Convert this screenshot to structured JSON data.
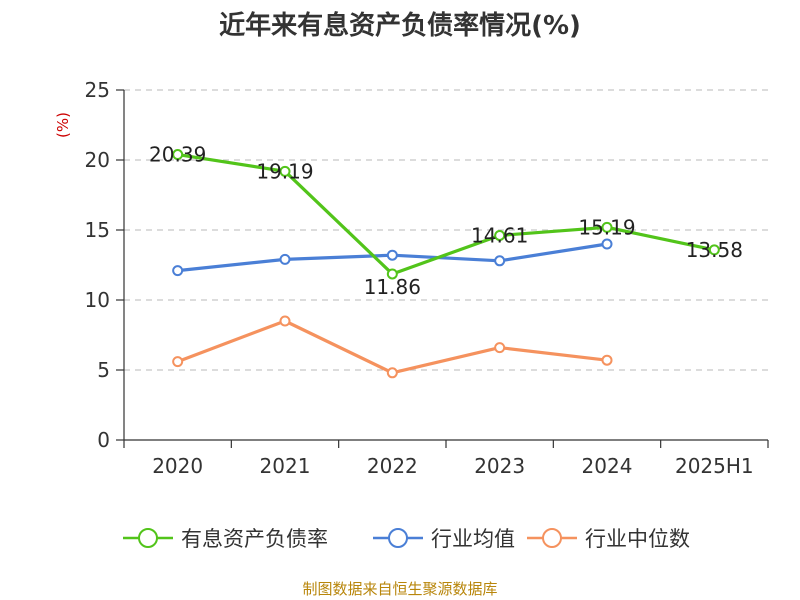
{
  "chart_data": {
    "type": "line",
    "title": "近年来有息资产负债率情况(%)",
    "unit_label": "(%)",
    "categories": [
      "2020",
      "2021",
      "2022",
      "2023",
      "2024",
      "2025H1"
    ],
    "ylim": [
      0,
      25
    ],
    "yticks": [
      "0",
      "5",
      "10",
      "15",
      "20",
      "25"
    ],
    "grid": true,
    "legend_position": "bottom",
    "series": [
      {
        "name": "有息资产负债率",
        "color": "#52c41a",
        "values": [
          20.39,
          19.19,
          11.86,
          14.61,
          15.19,
          13.58
        ],
        "labels": [
          "20.39",
          "19.19",
          "11.86",
          "14.61",
          "15.19",
          "13.58"
        ]
      },
      {
        "name": "行业均值",
        "color": "#4a7fd6",
        "values": [
          12.1,
          12.9,
          13.2,
          12.8,
          14.0,
          null
        ]
      },
      {
        "name": "行业中位数",
        "color": "#f5925e",
        "values": [
          5.6,
          8.5,
          4.8,
          6.6,
          5.7,
          null
        ]
      }
    ],
    "source": "制图数据来自恒生聚源数据库"
  }
}
